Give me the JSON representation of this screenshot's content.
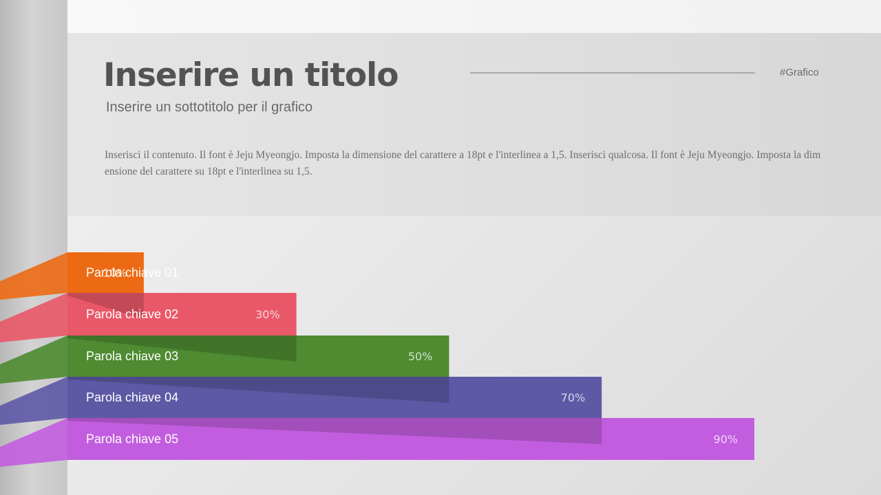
{
  "header": {
    "title": "Inserire un titolo",
    "subtitle": "Inserire un sottotitolo per il grafico",
    "tag": "#Grafico",
    "body": "Inserisci il contenuto. Il font è Jeju Myeongjo. Imposta la dimensione del carattere a 18pt e l'interlinea a 1,5. Inserisci qualcosa. Il font è Jeju Myeongjo. Imposta la dimensione del carattere su 18pt e l'interlinea su 1,5."
  },
  "chart_data": {
    "type": "bar",
    "orientation": "horizontal",
    "title": "",
    "xlabel": "",
    "ylabel": "",
    "xlim": [
      0,
      100
    ],
    "grid": false,
    "legend": "none",
    "categories": [
      "Parola chiave 01",
      "Parola chiave 02",
      "Parola chiave 03",
      "Parola chiave 04",
      "Parola chiave 05"
    ],
    "values": [
      10,
      30,
      50,
      70,
      90
    ],
    "value_labels": [
      "10%",
      "30%",
      "50%",
      "70%",
      "90%"
    ],
    "colors": [
      "#ec6a13",
      "#e95868",
      "#4e8b31",
      "#5e59a5",
      "#c25ddf"
    ]
  },
  "colors": {
    "shade": "#000000"
  }
}
